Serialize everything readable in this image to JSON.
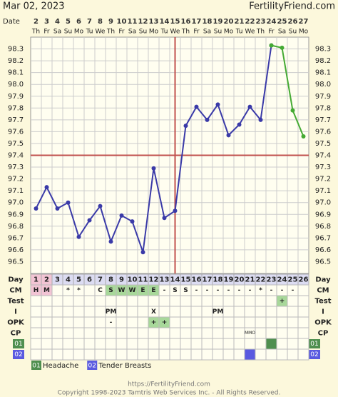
{
  "header": {
    "date": "Mar 02, 2023",
    "site": "FertilityFriend.com"
  },
  "chart_data": {
    "type": "line",
    "date_label": "Date",
    "day_label": "Day",
    "dates": [
      2,
      3,
      4,
      5,
      6,
      7,
      8,
      9,
      10,
      11,
      12,
      13,
      14,
      15,
      16,
      17,
      18,
      19,
      20,
      21,
      22,
      23,
      24,
      25,
      26,
      27
    ],
    "weekdays": [
      "Th",
      "Fr",
      "Sa",
      "Su",
      "Mo",
      "Tu",
      "We",
      "Th",
      "Fr",
      "Sa",
      "Su",
      "Mo",
      "Tu",
      "We",
      "Th",
      "Fr",
      "Sa",
      "Su",
      "Mo",
      "Tu",
      "We",
      "Th",
      "Fr",
      "Sa",
      "Su",
      "Mo"
    ],
    "categories": [
      1,
      2,
      3,
      4,
      5,
      6,
      7,
      8,
      9,
      10,
      11,
      12,
      13,
      14,
      15,
      16,
      17,
      18,
      19,
      20,
      21,
      22,
      23,
      24,
      25,
      26
    ],
    "day_fills": [
      "#f2c4d4",
      "#f2c4d4",
      null,
      null,
      null,
      null,
      null,
      null,
      null,
      null,
      null,
      null,
      null,
      null,
      null,
      null,
      null,
      null,
      null,
      null,
      null,
      null,
      null,
      null,
      null,
      null
    ],
    "series": [
      {
        "color": "#3a3aa8",
        "values": [
          96.95,
          97.13,
          96.95,
          97.0,
          96.71,
          96.85,
          96.97,
          96.67,
          96.89,
          96.84,
          96.58,
          97.29,
          96.87,
          96.93,
          97.65,
          97.81,
          97.7,
          97.83,
          97.57,
          97.66,
          97.81,
          97.7,
          98.33,
          null,
          null,
          null
        ]
      },
      {
        "color": "#44aa33",
        "values": [
          null,
          null,
          null,
          null,
          null,
          null,
          null,
          null,
          null,
          null,
          null,
          null,
          null,
          null,
          null,
          null,
          null,
          null,
          null,
          null,
          null,
          null,
          98.33,
          98.31,
          97.78,
          97.56
        ]
      }
    ],
    "ylim": [
      96.4,
      98.4
    ],
    "yticks": [
      {
        "value": 96.5,
        "label": "96.5"
      },
      {
        "value": 96.6,
        "label": "96.6"
      },
      {
        "value": 96.7,
        "label": "96.7"
      },
      {
        "value": 96.8,
        "label": "96.8"
      },
      {
        "value": 96.9,
        "label": "96.9"
      },
      {
        "value": 97.0,
        "label": "97.0"
      },
      {
        "value": 97.1,
        "label": "97.1"
      },
      {
        "value": 97.2,
        "label": "97.2"
      },
      {
        "value": 97.3,
        "label": "97.3"
      },
      {
        "value": 97.4,
        "label": "97.4"
      },
      {
        "value": 97.5,
        "label": "97.5"
      },
      {
        "value": 97.6,
        "label": "97.6"
      },
      {
        "value": 97.7,
        "label": "97.7"
      },
      {
        "value": 97.8,
        "label": "97.8"
      },
      {
        "value": 97.9,
        "label": "97.9"
      },
      {
        "value": 98.0,
        "label": "98.0"
      },
      {
        "value": 98.1,
        "label": "98.1"
      },
      {
        "value": 98.2,
        "label": "98.2"
      },
      {
        "value": 98.3,
        "label": "98.3"
      }
    ],
    "grid": true,
    "coverline": 97.4,
    "ovulation_day": 14,
    "marker_color": "#c0504d",
    "rows": [
      {
        "label": "CM",
        "cells": [
          "H",
          "M",
          null,
          "*",
          "*",
          null,
          "C",
          "S",
          "W",
          "W",
          "E",
          "E",
          "-",
          "S",
          "S",
          "-",
          "-",
          "-",
          "-",
          "-",
          "-",
          "*",
          "-",
          "-",
          "-",
          null
        ],
        "fills": [
          "#f2c4d4",
          "#f2c4d4",
          null,
          null,
          null,
          null,
          null,
          "#a8d89a",
          "#a8d89a",
          "#a8d89a",
          "#a8d89a",
          "#a8d89a",
          null,
          null,
          null,
          null,
          null,
          null,
          null,
          null,
          null,
          null,
          null,
          null,
          null,
          null
        ]
      },
      {
        "label": "Test",
        "cells": [
          null,
          null,
          null,
          null,
          null,
          null,
          null,
          null,
          null,
          null,
          null,
          null,
          null,
          null,
          null,
          null,
          null,
          null,
          null,
          null,
          null,
          null,
          null,
          "+",
          null,
          null
        ],
        "fills": [
          null,
          null,
          null,
          null,
          null,
          null,
          null,
          null,
          null,
          null,
          null,
          null,
          null,
          null,
          null,
          null,
          null,
          null,
          null,
          null,
          null,
          null,
          null,
          "#a8d89a",
          null,
          null
        ]
      },
      {
        "label": "I",
        "cells": [
          null,
          null,
          null,
          null,
          null,
          null,
          null,
          "PM",
          null,
          null,
          null,
          "X",
          null,
          null,
          null,
          null,
          null,
          "PM",
          null,
          null,
          null,
          null,
          null,
          null,
          null,
          null
        ],
        "fills": [
          null,
          null,
          null,
          null,
          null,
          null,
          null,
          null,
          null,
          null,
          null,
          null,
          null,
          null,
          null,
          null,
          null,
          null,
          null,
          null,
          null,
          null,
          null,
          null,
          null,
          null
        ]
      },
      {
        "label": "OPK",
        "cells": [
          null,
          null,
          null,
          null,
          null,
          null,
          null,
          "-",
          null,
          null,
          null,
          "+",
          "+",
          null,
          null,
          null,
          null,
          null,
          null,
          null,
          null,
          null,
          null,
          null,
          null,
          null
        ],
        "fills": [
          null,
          null,
          null,
          null,
          null,
          null,
          null,
          null,
          null,
          null,
          null,
          "#a8d89a",
          "#a8d89a",
          null,
          null,
          null,
          null,
          null,
          null,
          null,
          null,
          null,
          null,
          null,
          null,
          null
        ]
      },
      {
        "label": "CP",
        "cells": [
          null,
          null,
          null,
          null,
          null,
          null,
          null,
          null,
          null,
          null,
          null,
          null,
          null,
          null,
          null,
          null,
          null,
          null,
          null,
          null,
          "MMO",
          null,
          null,
          null,
          null,
          null
        ],
        "fills": [
          null,
          null,
          null,
          null,
          null,
          null,
          null,
          null,
          null,
          null,
          null,
          null,
          null,
          null,
          null,
          null,
          null,
          null,
          null,
          null,
          null,
          null,
          null,
          null,
          null,
          null
        ]
      }
    ],
    "symptoms": [
      {
        "code": "01",
        "name": "Headache",
        "color": "#4f8f4f",
        "fills": [
          null,
          null,
          null,
          null,
          null,
          null,
          null,
          null,
          null,
          null,
          null,
          null,
          null,
          null,
          null,
          null,
          null,
          null,
          null,
          null,
          null,
          null,
          "#4f8f4f",
          null,
          null,
          null
        ]
      },
      {
        "code": "02",
        "name": "Tender Breasts",
        "color": "#5a5ae0",
        "fills": [
          null,
          null,
          null,
          null,
          null,
          null,
          null,
          null,
          null,
          null,
          null,
          null,
          null,
          null,
          null,
          null,
          null,
          null,
          null,
          null,
          "#5a5ae0",
          null,
          null,
          null,
          null,
          null
        ]
      }
    ]
  },
  "footer": {
    "url": "https://FertilityFriend.com",
    "copyright": "Copyright 1998-2023 Tamtris Web Services Inc. - All Rights Reserved."
  }
}
